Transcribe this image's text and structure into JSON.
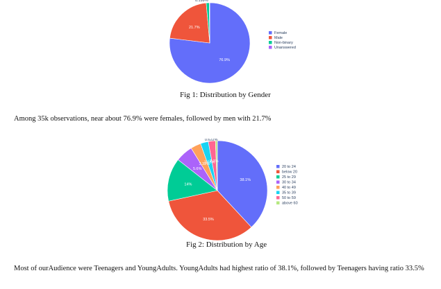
{
  "figures": [
    {
      "caption": "Fig 1: Distribution by Gender",
      "chart_data": {
        "type": "pie",
        "categories": [
          "Female",
          "Male",
          "Non-binary",
          "Unanswered"
        ],
        "values": [
          76.9,
          21.7,
          1.2,
          0.199
        ],
        "labels": [
          "76.9%",
          "21.7%",
          "1.2%",
          "0.199%"
        ],
        "colors": [
          "#636efa",
          "#ef553b",
          "#00cc96",
          "#ab63fa"
        ],
        "legend": "right"
      }
    },
    {
      "caption": "Fig 2: Distribution by Age",
      "chart_data": {
        "type": "pie",
        "categories": [
          "20 to 24",
          "below 20",
          "25 to 29",
          "30 to 34",
          "40 to 49",
          "35 to 39",
          "50 to 59",
          "above 60"
        ],
        "values": [
          38.1,
          33.5,
          14.0,
          5.6,
          3.32,
          2.55,
          2.3,
          0.622
        ],
        "labels": [
          "38.1%",
          "33.5%",
          "14%",
          "5.6%",
          "3.32%",
          "2.55%",
          "2.3%",
          "0.622%"
        ],
        "colors": [
          "#636efa",
          "#ef553b",
          "#00cc96",
          "#ab63fa",
          "#ffa15a",
          "#19d3f3",
          "#ff6692",
          "#b6e880"
        ],
        "legend": "right"
      }
    }
  ],
  "paragraphs": [
    "Among 35k observations, near about 76.9% were females, followed by men with 21.7%",
    "Most of ourAudience were Teenagers and YoungAdults. YoungAdults had highest ratio of 38.1%, followed by Teenagers having ratio 33.5%"
  ]
}
